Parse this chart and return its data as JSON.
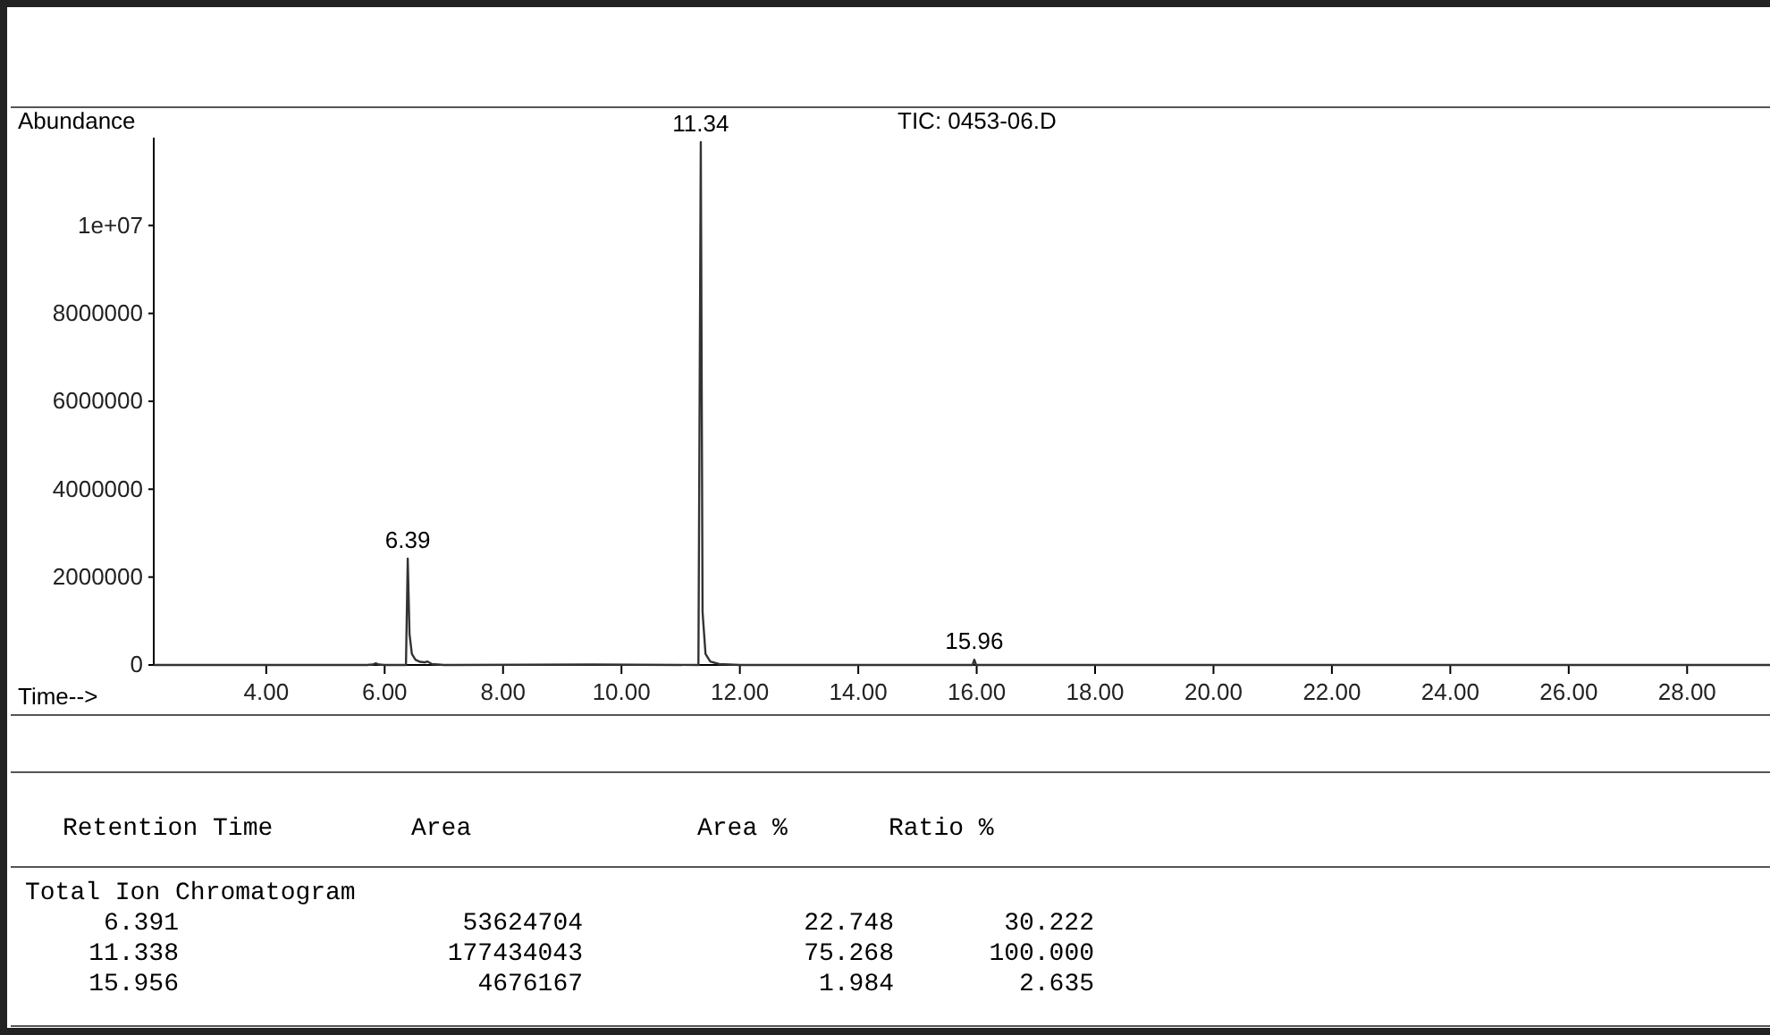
{
  "chart_data": [
    {
      "type": "line",
      "title": "TIC: 0453-06.D",
      "xlabel": "Time-->",
      "ylabel": "Abundance",
      "x": [
        2.1,
        5.7,
        5.8,
        5.85,
        5.9,
        6.0,
        6.36,
        6.39,
        6.42,
        6.46,
        6.52,
        6.6,
        6.68,
        6.72,
        6.8,
        7.0,
        9.5,
        11.3,
        11.34,
        11.37,
        11.42,
        11.5,
        11.65,
        12.0,
        15.93,
        15.96,
        15.99,
        29.4
      ],
      "series": [
        {
          "color": "#333333",
          "values": [
            0,
            0,
            10000,
            40000,
            10000,
            0,
            0,
            2420000,
            700000,
            250000,
            120000,
            70000,
            60000,
            80000,
            20000,
            0,
            10000,
            0,
            11900000,
            1200000,
            250000,
            80000,
            20000,
            0,
            0,
            120000,
            0,
            0
          ]
        }
      ],
      "annotations": [
        {
          "text": "6.39",
          "x": 6.39,
          "y": 2420000
        },
        {
          "text": "11.34",
          "x": 11.34,
          "y": 11900000
        },
        {
          "text": "15.96",
          "x": 15.96,
          "y": 120000
        }
      ],
      "xlim": [
        2.1,
        29.4
      ],
      "xticks": [
        {
          "value": 4,
          "label": "4.00"
        },
        {
          "value": 6,
          "label": "6.00"
        },
        {
          "value": 8,
          "label": "8.00"
        },
        {
          "value": 10,
          "label": "10.00"
        },
        {
          "value": 12,
          "label": "12.00"
        },
        {
          "value": 14,
          "label": "14.00"
        },
        {
          "value": 16,
          "label": "16.00"
        },
        {
          "value": 18,
          "label": "18.00"
        },
        {
          "value": 20,
          "label": "20.00"
        },
        {
          "value": 22,
          "label": "22.00"
        },
        {
          "value": 24,
          "label": "24.00"
        },
        {
          "value": 26,
          "label": "26.00"
        },
        {
          "value": 28,
          "label": "28.00"
        }
      ],
      "ylim": [
        0,
        12000000
      ],
      "yticks": [
        0,
        2000000,
        4000000,
        6000000,
        8000000,
        {
          "value": 10000000,
          "label": "1e+07"
        }
      ],
      "grid": false
    },
    {
      "type": "other",
      "annotations": [
        "Retention Time",
        "Area",
        "Area %",
        "Ratio %",
        "Total Ion Chromatogram",
        "6.391",
        "53624704",
        "22.748",
        "30.222",
        "11.338",
        "177434043",
        "75.268",
        "100.000",
        "15.956",
        "4676167",
        "1.984",
        "2.635"
      ]
    }
  ]
}
